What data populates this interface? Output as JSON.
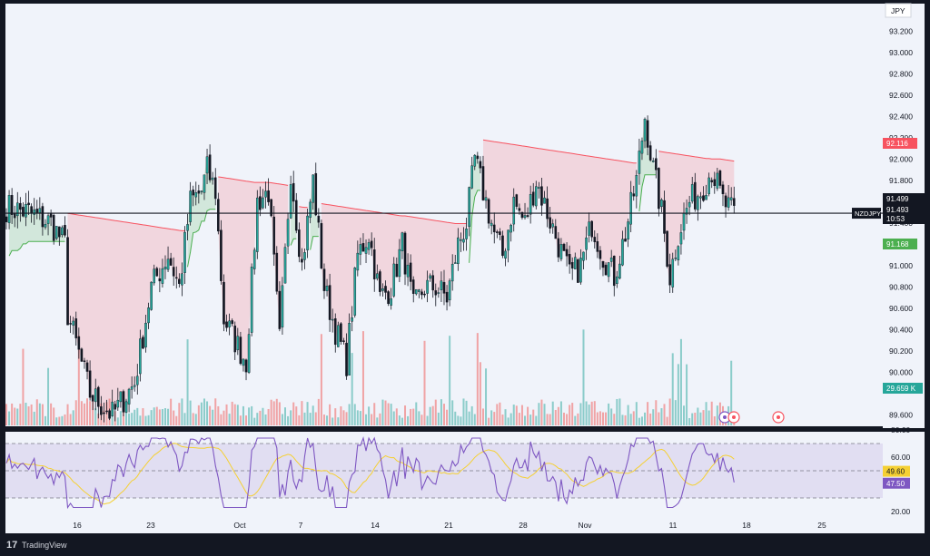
{
  "chart_data": [
    {
      "type": "candlestick",
      "symbol": "NZDJPY",
      "currency": "JPY",
      "y_ticks": [
        "93.200",
        "93.000",
        "92.800",
        "92.600",
        "92.400",
        "92.200",
        "92.000",
        "91.800",
        "91.400",
        "91.200",
        "91.000",
        "90.800",
        "90.600",
        "90.400",
        "90.200",
        "90.000",
        "89.600"
      ],
      "ylim": [
        89.6,
        93.3
      ],
      "x_ticks": [
        "16",
        "23",
        "Oct",
        "7",
        "14",
        "21",
        "28",
        "Nov",
        "11",
        "18",
        "25"
      ],
      "price_badges": {
        "upper_level": "92.116",
        "last_high": "91.499",
        "last_price": "91.493",
        "countdown": "10:53",
        "lower_level": "91.168",
        "volume": "29.659 K"
      },
      "anchors": [
        [
          0,
          91.55
        ],
        [
          8,
          91.5
        ],
        [
          16,
          91.4
        ],
        [
          21,
          91.2
        ],
        [
          22,
          90.55
        ],
        [
          30,
          89.8
        ],
        [
          38,
          89.6
        ],
        [
          46,
          89.9
        ],
        [
          52,
          90.8
        ],
        [
          58,
          91.1
        ],
        [
          62,
          90.8
        ],
        [
          66,
          91.6
        ],
        [
          70,
          91.7
        ],
        [
          72,
          91.9
        ],
        [
          75,
          91.7
        ],
        [
          78,
          90.5
        ],
        [
          82,
          90.3
        ],
        [
          86,
          90.1
        ],
        [
          90,
          91.6
        ],
        [
          94,
          91.7
        ],
        [
          98,
          90.3
        ],
        [
          102,
          91.9
        ],
        [
          106,
          91.0
        ],
        [
          110,
          91.8
        ],
        [
          114,
          90.8
        ],
        [
          118,
          90.4
        ],
        [
          122,
          90.1
        ],
        [
          126,
          91.1
        ],
        [
          130,
          91.3
        ],
        [
          134,
          90.7
        ],
        [
          138,
          90.8
        ],
        [
          142,
          91.2
        ],
        [
          146,
          90.6
        ],
        [
          150,
          90.8
        ],
        [
          154,
          90.8
        ],
        [
          158,
          90.7
        ],
        [
          162,
          91.2
        ],
        [
          165,
          91.4
        ],
        [
          168,
          92.0
        ],
        [
          171,
          91.7
        ],
        [
          175,
          91.3
        ],
        [
          178,
          91.1
        ],
        [
          182,
          91.6
        ],
        [
          186,
          91.4
        ],
        [
          190,
          91.8
        ],
        [
          194,
          91.5
        ],
        [
          198,
          91.2
        ],
        [
          202,
          90.9
        ],
        [
          206,
          91.0
        ],
        [
          210,
          91.4
        ],
        [
          214,
          91.1
        ],
        [
          218,
          90.9
        ],
        [
          222,
          91.3
        ],
        [
          226,
          91.8
        ],
        [
          229,
          92.4
        ],
        [
          232,
          91.9
        ],
        [
          235,
          91.5
        ],
        [
          238,
          90.9
        ],
        [
          241,
          91.3
        ],
        [
          245,
          91.6
        ],
        [
          249,
          91.7
        ],
        [
          253,
          91.9
        ],
        [
          257,
          91.6
        ],
        [
          261,
          91.48
        ]
      ],
      "rsi": {
        "y_ticks": [
          "80.00",
          "60.00",
          "40.00",
          "20.00"
        ],
        "levels": [
          70,
          50,
          30
        ],
        "value": "47.50",
        "ma_value": "49.60"
      }
    }
  ],
  "colors": {
    "up": "#26a69a",
    "down": "#ef5350",
    "upper_band": "#f7525f",
    "lower_band": "#4caf50",
    "rsi": "#7e57c2",
    "rsi_ma": "#f5d033",
    "background": "#131722",
    "pane": "#f0f3fa"
  },
  "footer": {
    "brand": "TradingView"
  }
}
